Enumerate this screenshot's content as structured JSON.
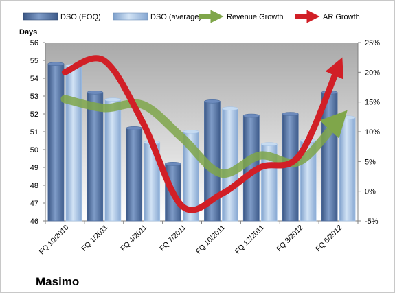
{
  "company": "Masimo",
  "colors": {
    "dso_eoq": "#4f6fa0",
    "dso_avg": "#a9c6e8",
    "revenue_growth": "#7fa64a",
    "ar_growth": "#d11f26",
    "plot_top": "#a9a9a9",
    "plot_bottom": "#ffffff"
  },
  "legend": {
    "dso_eoq": "DSO (EOQ)",
    "dso_avg": "DSO (average)",
    "revenue_growth": "Revenue Growth",
    "ar_growth": "AR Growth"
  },
  "chart_data": {
    "type": "bar",
    "units_label": "Days",
    "categories": [
      "FQ 10/2010",
      "FQ 1/2011",
      "FQ 4/2011",
      "FQ 7/2011",
      "FQ 10/2011",
      "FQ 12/2011",
      "FQ 3/2012",
      "FQ 6/2012"
    ],
    "left_axis": {
      "min": 46,
      "max": 56,
      "ticks": [
        "46",
        "47",
        "48",
        "49",
        "50",
        "51",
        "52",
        "53",
        "54",
        "55",
        "56"
      ]
    },
    "right_axis": {
      "min": -5,
      "max": 25,
      "ticks": [
        "-5%",
        "0%",
        "5%",
        "10%",
        "15%",
        "20%",
        "25%"
      ]
    },
    "series": [
      {
        "name": "DSO (EOQ)",
        "type": "bar",
        "axis": "left",
        "values": [
          54.8,
          53.2,
          51.2,
          49.2,
          52.7,
          51.9,
          52.0,
          53.2
        ]
      },
      {
        "name": "DSO (average)",
        "type": "bar",
        "axis": "left",
        "values": [
          54.7,
          52.8,
          50.4,
          51.0,
          52.3,
          50.3,
          50.5,
          51.8
        ]
      },
      {
        "name": "Revenue Growth",
        "type": "line",
        "axis": "right",
        "values": [
          15.5,
          14.0,
          14.5,
          9.0,
          3.0,
          6.0,
          5.0,
          12.0
        ]
      },
      {
        "name": "AR Growth",
        "type": "line",
        "axis": "right",
        "values": [
          20.0,
          22.0,
          11.5,
          -2.5,
          -0.5,
          4.0,
          6.0,
          21.0
        ]
      }
    ],
    "grid": false,
    "legend_position": "top"
  }
}
